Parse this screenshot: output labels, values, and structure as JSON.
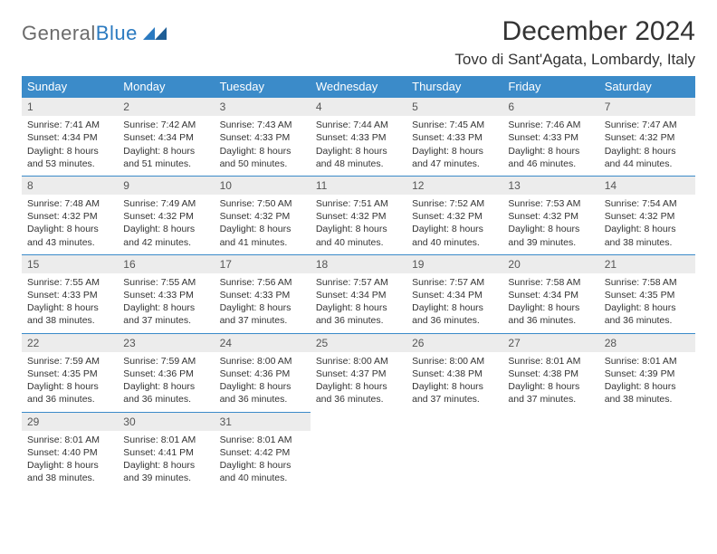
{
  "logo": {
    "part1": "General",
    "part2": "Blue"
  },
  "title": "December 2024",
  "location": "Tovo di Sant'Agata, Lombardy, Italy",
  "colors": {
    "header_bg": "#3b8bc9",
    "header_text": "#ffffff",
    "daynum_bg": "#ececec",
    "rule": "#3b8bc9",
    "logo_gray": "#6b6b6b",
    "logo_blue": "#2b7ac0"
  },
  "weekdays": [
    "Sunday",
    "Monday",
    "Tuesday",
    "Wednesday",
    "Thursday",
    "Friday",
    "Saturday"
  ],
  "weeks": [
    [
      {
        "n": "1",
        "sr": "Sunrise: 7:41 AM",
        "ss": "Sunset: 4:34 PM",
        "d1": "Daylight: 8 hours",
        "d2": "and 53 minutes."
      },
      {
        "n": "2",
        "sr": "Sunrise: 7:42 AM",
        "ss": "Sunset: 4:34 PM",
        "d1": "Daylight: 8 hours",
        "d2": "and 51 minutes."
      },
      {
        "n": "3",
        "sr": "Sunrise: 7:43 AM",
        "ss": "Sunset: 4:33 PM",
        "d1": "Daylight: 8 hours",
        "d2": "and 50 minutes."
      },
      {
        "n": "4",
        "sr": "Sunrise: 7:44 AM",
        "ss": "Sunset: 4:33 PM",
        "d1": "Daylight: 8 hours",
        "d2": "and 48 minutes."
      },
      {
        "n": "5",
        "sr": "Sunrise: 7:45 AM",
        "ss": "Sunset: 4:33 PM",
        "d1": "Daylight: 8 hours",
        "d2": "and 47 minutes."
      },
      {
        "n": "6",
        "sr": "Sunrise: 7:46 AM",
        "ss": "Sunset: 4:33 PM",
        "d1": "Daylight: 8 hours",
        "d2": "and 46 minutes."
      },
      {
        "n": "7",
        "sr": "Sunrise: 7:47 AM",
        "ss": "Sunset: 4:32 PM",
        "d1": "Daylight: 8 hours",
        "d2": "and 44 minutes."
      }
    ],
    [
      {
        "n": "8",
        "sr": "Sunrise: 7:48 AM",
        "ss": "Sunset: 4:32 PM",
        "d1": "Daylight: 8 hours",
        "d2": "and 43 minutes."
      },
      {
        "n": "9",
        "sr": "Sunrise: 7:49 AM",
        "ss": "Sunset: 4:32 PM",
        "d1": "Daylight: 8 hours",
        "d2": "and 42 minutes."
      },
      {
        "n": "10",
        "sr": "Sunrise: 7:50 AM",
        "ss": "Sunset: 4:32 PM",
        "d1": "Daylight: 8 hours",
        "d2": "and 41 minutes."
      },
      {
        "n": "11",
        "sr": "Sunrise: 7:51 AM",
        "ss": "Sunset: 4:32 PM",
        "d1": "Daylight: 8 hours",
        "d2": "and 40 minutes."
      },
      {
        "n": "12",
        "sr": "Sunrise: 7:52 AM",
        "ss": "Sunset: 4:32 PM",
        "d1": "Daylight: 8 hours",
        "d2": "and 40 minutes."
      },
      {
        "n": "13",
        "sr": "Sunrise: 7:53 AM",
        "ss": "Sunset: 4:32 PM",
        "d1": "Daylight: 8 hours",
        "d2": "and 39 minutes."
      },
      {
        "n": "14",
        "sr": "Sunrise: 7:54 AM",
        "ss": "Sunset: 4:32 PM",
        "d1": "Daylight: 8 hours",
        "d2": "and 38 minutes."
      }
    ],
    [
      {
        "n": "15",
        "sr": "Sunrise: 7:55 AM",
        "ss": "Sunset: 4:33 PM",
        "d1": "Daylight: 8 hours",
        "d2": "and 38 minutes."
      },
      {
        "n": "16",
        "sr": "Sunrise: 7:55 AM",
        "ss": "Sunset: 4:33 PM",
        "d1": "Daylight: 8 hours",
        "d2": "and 37 minutes."
      },
      {
        "n": "17",
        "sr": "Sunrise: 7:56 AM",
        "ss": "Sunset: 4:33 PM",
        "d1": "Daylight: 8 hours",
        "d2": "and 37 minutes."
      },
      {
        "n": "18",
        "sr": "Sunrise: 7:57 AM",
        "ss": "Sunset: 4:34 PM",
        "d1": "Daylight: 8 hours",
        "d2": "and 36 minutes."
      },
      {
        "n": "19",
        "sr": "Sunrise: 7:57 AM",
        "ss": "Sunset: 4:34 PM",
        "d1": "Daylight: 8 hours",
        "d2": "and 36 minutes."
      },
      {
        "n": "20",
        "sr": "Sunrise: 7:58 AM",
        "ss": "Sunset: 4:34 PM",
        "d1": "Daylight: 8 hours",
        "d2": "and 36 minutes."
      },
      {
        "n": "21",
        "sr": "Sunrise: 7:58 AM",
        "ss": "Sunset: 4:35 PM",
        "d1": "Daylight: 8 hours",
        "d2": "and 36 minutes."
      }
    ],
    [
      {
        "n": "22",
        "sr": "Sunrise: 7:59 AM",
        "ss": "Sunset: 4:35 PM",
        "d1": "Daylight: 8 hours",
        "d2": "and 36 minutes."
      },
      {
        "n": "23",
        "sr": "Sunrise: 7:59 AM",
        "ss": "Sunset: 4:36 PM",
        "d1": "Daylight: 8 hours",
        "d2": "and 36 minutes."
      },
      {
        "n": "24",
        "sr": "Sunrise: 8:00 AM",
        "ss": "Sunset: 4:36 PM",
        "d1": "Daylight: 8 hours",
        "d2": "and 36 minutes."
      },
      {
        "n": "25",
        "sr": "Sunrise: 8:00 AM",
        "ss": "Sunset: 4:37 PM",
        "d1": "Daylight: 8 hours",
        "d2": "and 36 minutes."
      },
      {
        "n": "26",
        "sr": "Sunrise: 8:00 AM",
        "ss": "Sunset: 4:38 PM",
        "d1": "Daylight: 8 hours",
        "d2": "and 37 minutes."
      },
      {
        "n": "27",
        "sr": "Sunrise: 8:01 AM",
        "ss": "Sunset: 4:38 PM",
        "d1": "Daylight: 8 hours",
        "d2": "and 37 minutes."
      },
      {
        "n": "28",
        "sr": "Sunrise: 8:01 AM",
        "ss": "Sunset: 4:39 PM",
        "d1": "Daylight: 8 hours",
        "d2": "and 38 minutes."
      }
    ],
    [
      {
        "n": "29",
        "sr": "Sunrise: 8:01 AM",
        "ss": "Sunset: 4:40 PM",
        "d1": "Daylight: 8 hours",
        "d2": "and 38 minutes."
      },
      {
        "n": "30",
        "sr": "Sunrise: 8:01 AM",
        "ss": "Sunset: 4:41 PM",
        "d1": "Daylight: 8 hours",
        "d2": "and 39 minutes."
      },
      {
        "n": "31",
        "sr": "Sunrise: 8:01 AM",
        "ss": "Sunset: 4:42 PM",
        "d1": "Daylight: 8 hours",
        "d2": "and 40 minutes."
      },
      null,
      null,
      null,
      null
    ]
  ]
}
